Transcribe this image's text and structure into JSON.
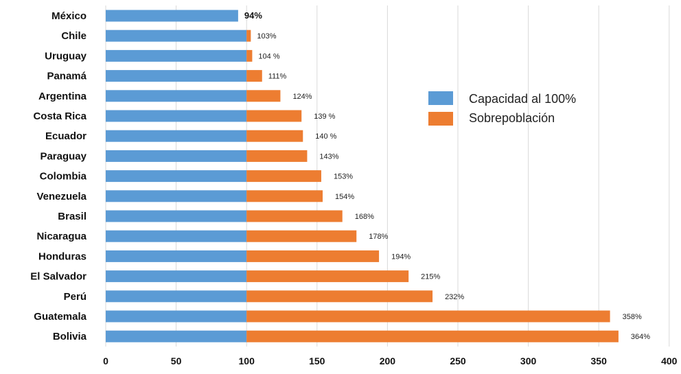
{
  "chart_data": {
    "type": "bar",
    "orientation": "horizontal",
    "stacked": true,
    "categories": [
      "México",
      "Chile",
      "Uruguay",
      "Panamá",
      "Argentina",
      "Costa Rica",
      "Ecuador",
      "Paraguay",
      "Colombia",
      "Venezuela",
      "Brasil",
      "Nicaragua",
      "Honduras",
      "El Salvador",
      "Perú",
      "Guatemala",
      "Bolivia"
    ],
    "totals": [
      94,
      103,
      104,
      111,
      124,
      139,
      140,
      143,
      153,
      154,
      168,
      178,
      194,
      215,
      232,
      358,
      364
    ],
    "data_labels": [
      "94%",
      "103%",
      "104 %",
      "111%",
      "124%",
      "139 %",
      "140 %",
      "143%",
      "153%",
      "154%",
      "168%",
      "178%",
      "194%",
      "215%",
      "232%",
      "358%",
      "364%"
    ],
    "series": [
      {
        "name": "Capacidad al 100%",
        "color": "#5b9bd5",
        "values": [
          94,
          100,
          100,
          100,
          100,
          100,
          100,
          100,
          100,
          100,
          100,
          100,
          100,
          100,
          100,
          100,
          100
        ]
      },
      {
        "name": "Sobrepoblación",
        "color": "#ed7d31",
        "values": [
          0,
          3,
          4,
          11,
          24,
          39,
          40,
          43,
          53,
          54,
          68,
          78,
          94,
          115,
          132,
          258,
          264
        ]
      }
    ],
    "xlim": [
      0,
      400
    ],
    "xticks": [
      "0",
      "50",
      "100",
      "150",
      "200",
      "250",
      "300",
      "350",
      "400"
    ],
    "grid": true,
    "legend_position": "right",
    "title": "",
    "xlabel": "",
    "ylabel": ""
  }
}
